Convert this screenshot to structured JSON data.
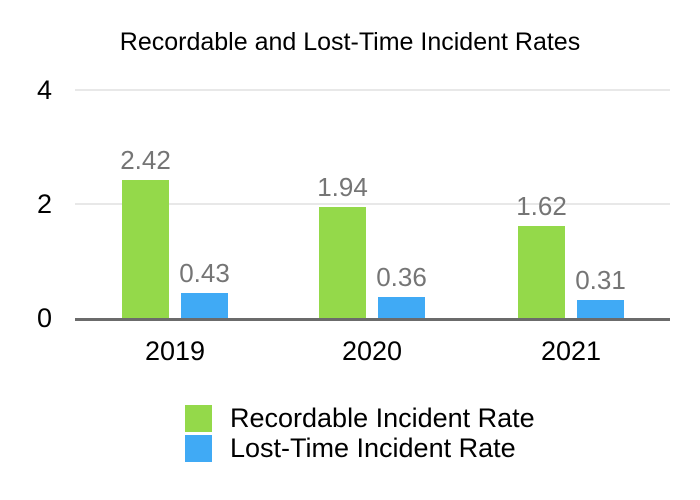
{
  "title": "Recordable and Lost-Time Incident Rates",
  "chart_data": {
    "type": "bar",
    "title": "Recordable and Lost-Time Incident Rates",
    "categories": [
      "2019",
      "2020",
      "2021"
    ],
    "series": [
      {
        "name": "Recordable Incident Rate",
        "color": "#94d94a",
        "values": [
          2.42,
          1.94,
          1.62
        ],
        "labels": [
          "2.42",
          "1.94",
          "1.62"
        ]
      },
      {
        "name": "Lost-Time Incident Rate",
        "color": "#40aaf5",
        "values": [
          0.43,
          0.36,
          0.31
        ],
        "labels": [
          "0.43",
          "0.36",
          "0.31"
        ]
      }
    ],
    "y_ticks": [
      "0",
      "2",
      "4"
    ],
    "ylim": [
      0,
      4
    ],
    "grid": true,
    "legend_position": "bottom-left",
    "xlabel": "",
    "ylabel": "",
    "value_label_color": "#757575",
    "gridline_color": "#e8e8e8",
    "axis_line_color": "#6b6b6b"
  }
}
